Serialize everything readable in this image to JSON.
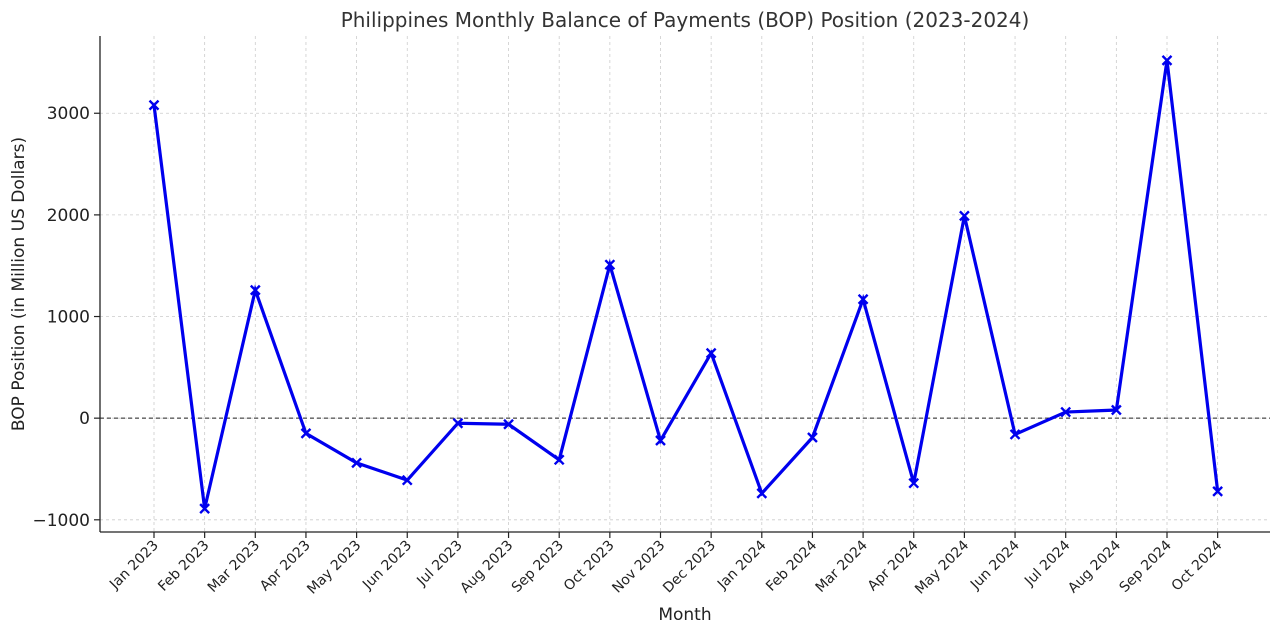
{
  "chart_data": {
    "type": "line",
    "title": "Philippines Monthly Balance of Payments (BOP) Position (2023-2024)",
    "xlabel": "Month",
    "ylabel": "BOP Position (in Million US Dollars)",
    "categories": [
      "Jan 2023",
      "Feb 2023",
      "Mar 2023",
      "Apr 2023",
      "May 2023",
      "Jun 2023",
      "Jul 2023",
      "Aug 2023",
      "Sep 2023",
      "Oct 2023",
      "Nov 2023",
      "Dec 2023",
      "Jan 2024",
      "Feb 2024",
      "Mar 2024",
      "Apr 2024",
      "May 2024",
      "Jun 2024",
      "Jul 2024",
      "Aug 2024",
      "Sep 2024",
      "Oct 2024"
    ],
    "series": [
      {
        "values": [
          3080,
          -890,
          1260,
          -150,
          -440,
          -610,
          -50,
          -60,
          -410,
          1510,
          -220,
          640,
          -740,
          -190,
          1170,
          -640,
          1990,
          -160,
          60,
          80,
          3520,
          -720
        ],
        "color": "#0000ee",
        "marker": "x"
      }
    ],
    "yticks": [
      -1000,
      0,
      1000,
      2000,
      3000
    ],
    "yticklabels": [
      "−1000",
      "0",
      "1000",
      "2000",
      "3000"
    ],
    "ylim": [
      -1120,
      3760
    ],
    "grid": true,
    "reference_line": {
      "y": 0,
      "style": "dashed",
      "color": "#222222"
    }
  }
}
